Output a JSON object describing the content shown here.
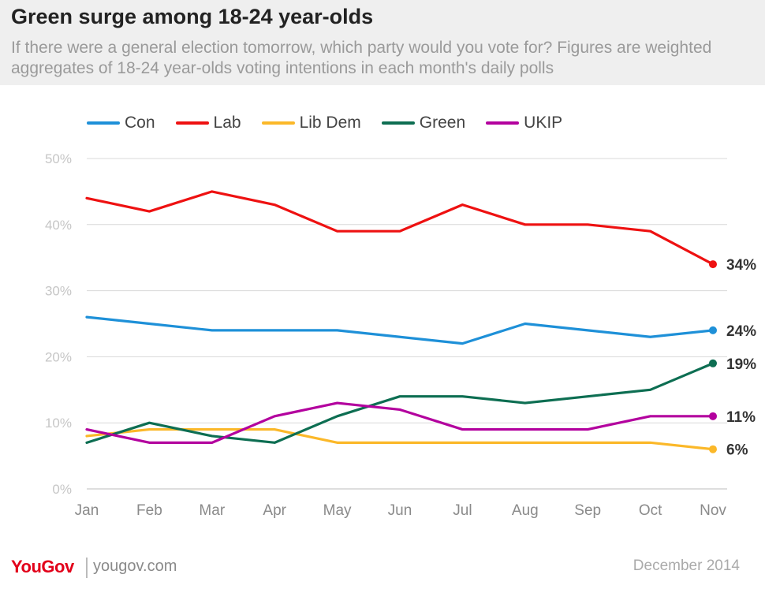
{
  "header": {
    "title": "Green surge among 18-24 year-olds",
    "subtitle": "If there were a general election tomorrow, which party would you vote for? Figures are weighted aggregates of 18-24 year-olds voting intentions in each month's daily polls"
  },
  "footer": {
    "logo": "YouGov",
    "url": "yougov.com",
    "date": "December 2014"
  },
  "chart_data": {
    "type": "line",
    "title": "Green surge among 18-24 year-olds",
    "categories": [
      "Jan",
      "Feb",
      "Mar",
      "Apr",
      "May",
      "Jun",
      "Jul",
      "Aug",
      "Sep",
      "Oct",
      "Nov"
    ],
    "ylim": [
      0,
      50
    ],
    "yticks": [
      0,
      10,
      20,
      30,
      40,
      50
    ],
    "ytick_labels": [
      "0%",
      "10%",
      "20%",
      "30%",
      "40%",
      "50%"
    ],
    "grid": true,
    "legend_position": "top-left",
    "series": [
      {
        "name": "Con",
        "color": "#1e90d8",
        "values": [
          26,
          25,
          24,
          24,
          24,
          23,
          22,
          25,
          24,
          23,
          24
        ],
        "end_label": "24%"
      },
      {
        "name": "Lab",
        "color": "#ee1111",
        "values": [
          44,
          42,
          45,
          43,
          39,
          39,
          43,
          40,
          40,
          39,
          34
        ],
        "end_label": "34%"
      },
      {
        "name": "Lib Dem",
        "color": "#fbb829",
        "values": [
          8,
          9,
          9,
          9,
          7,
          7,
          7,
          7,
          7,
          7,
          6
        ],
        "end_label": "6%"
      },
      {
        "name": "Green",
        "color": "#0d6e52",
        "values": [
          7,
          10,
          8,
          7,
          11,
          14,
          14,
          13,
          14,
          15,
          19
        ],
        "end_label": "19%"
      },
      {
        "name": "UKIP",
        "color": "#b3009e",
        "values": [
          9,
          7,
          7,
          11,
          13,
          12,
          9,
          9,
          9,
          11,
          11
        ],
        "end_label": "11%"
      }
    ]
  }
}
